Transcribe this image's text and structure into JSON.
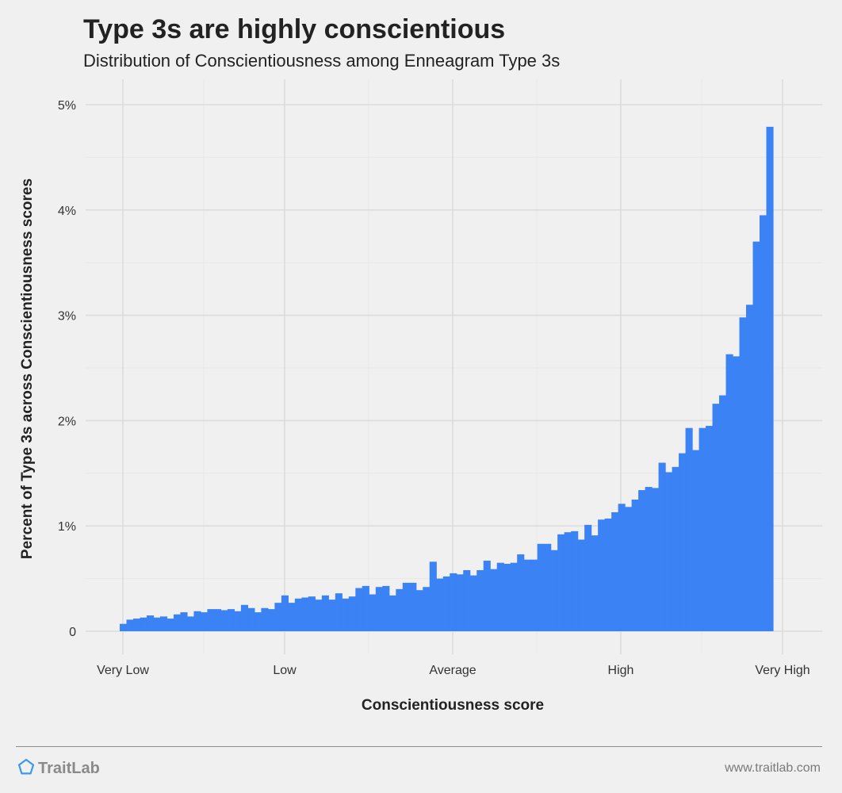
{
  "header": {
    "title": "Type 3s are highly conscientious",
    "subtitle": "Distribution of Conscientiousness among Enneagram Type 3s"
  },
  "footer": {
    "brand": "TraitLab",
    "url": "www.traitlab.com"
  },
  "colors": {
    "bar": "#3b82f4",
    "background": "#f0f0f0",
    "grid_major": "#dcdcdc",
    "grid_minor": "#e8e8e8"
  },
  "icons": {
    "logo": "pentagon-logo-icon"
  },
  "chart_data": {
    "type": "bar",
    "xlabel": "Conscientiousness score",
    "ylabel": "Percent of Type 3s across Conscientiousness scores",
    "ylim": [
      0,
      5
    ],
    "y_ticks": [
      0,
      1,
      2,
      3,
      4,
      5
    ],
    "y_tick_labels": [
      "0",
      "1%",
      "2%",
      "3%",
      "4%",
      "5%"
    ],
    "x_tick_labels": [
      "Very Low",
      "Low",
      "Average",
      "High",
      "Very High"
    ],
    "grid": true,
    "values": [
      0.07,
      0.11,
      0.12,
      0.13,
      0.15,
      0.13,
      0.14,
      0.12,
      0.16,
      0.18,
      0.14,
      0.19,
      0.18,
      0.21,
      0.21,
      0.2,
      0.21,
      0.19,
      0.25,
      0.22,
      0.18,
      0.22,
      0.21,
      0.27,
      0.34,
      0.27,
      0.31,
      0.32,
      0.33,
      0.3,
      0.34,
      0.3,
      0.36,
      0.31,
      0.33,
      0.41,
      0.43,
      0.35,
      0.42,
      0.43,
      0.34,
      0.4,
      0.46,
      0.46,
      0.39,
      0.42,
      0.66,
      0.5,
      0.52,
      0.55,
      0.54,
      0.58,
      0.53,
      0.58,
      0.67,
      0.59,
      0.65,
      0.64,
      0.65,
      0.73,
      0.68,
      0.68,
      0.83,
      0.83,
      0.77,
      0.92,
      0.94,
      0.95,
      0.87,
      1.01,
      0.91,
      1.06,
      1.07,
      1.13,
      1.21,
      1.18,
      1.25,
      1.34,
      1.37,
      1.36,
      1.6,
      1.51,
      1.56,
      1.69,
      1.93,
      1.72,
      1.93,
      1.95,
      2.16,
      2.24,
      2.63,
      2.61,
      2.98,
      3.1,
      3.7,
      3.95,
      4.79
    ]
  }
}
